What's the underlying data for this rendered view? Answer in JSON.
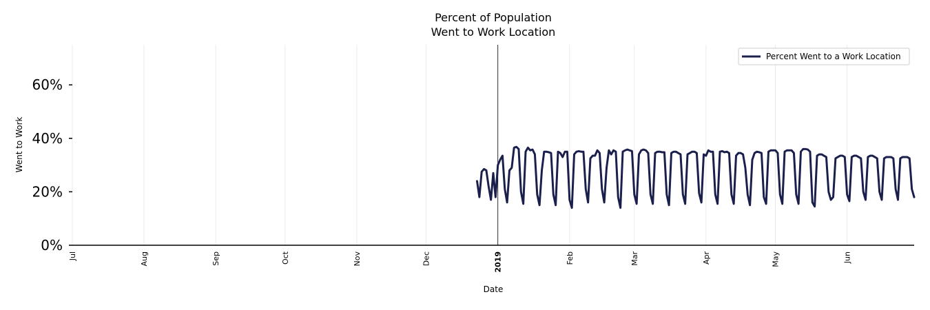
{
  "chart_data": {
    "type": "line",
    "title_line1": "Percent of Population",
    "title_line2": "Went to Work Location",
    "xlabel": "Date",
    "ylabel": "Went to Work",
    "ylim": [
      0,
      75
    ],
    "yticks": [
      0,
      20,
      40,
      60
    ],
    "ytick_labels": [
      "0%",
      "20%",
      "40%",
      "60%"
    ],
    "x_start": "2018-07-01",
    "x_end": "2019-06-30",
    "xticks": [
      {
        "date": "2018-07-01",
        "label": "Jul",
        "bold": false
      },
      {
        "date": "2018-08-01",
        "label": "Aug",
        "bold": false
      },
      {
        "date": "2018-09-01",
        "label": "Sep",
        "bold": false
      },
      {
        "date": "2018-10-01",
        "label": "Oct",
        "bold": false
      },
      {
        "date": "2018-11-01",
        "label": "Nov",
        "bold": false
      },
      {
        "date": "2018-12-01",
        "label": "Dec",
        "bold": false
      },
      {
        "date": "2019-01-01",
        "label": "2019",
        "bold": true
      },
      {
        "date": "2019-02-01",
        "label": "Feb",
        "bold": false
      },
      {
        "date": "2019-03-01",
        "label": "Mar",
        "bold": false
      },
      {
        "date": "2019-04-01",
        "label": "Apr",
        "bold": false
      },
      {
        "date": "2019-05-01",
        "label": "May",
        "bold": false
      },
      {
        "date": "2019-06-01",
        "label": "Jun",
        "bold": false
      }
    ],
    "vline_date": "2019-01-01",
    "legend": "Percent Went to a Work Location",
    "legend_loc": "top-right",
    "series": [
      {
        "name": "Percent Went to a Work Location",
        "color": "#1b1f4b",
        "start_date": "2018-12-23",
        "values": [
          24,
          18,
          27.5,
          28.5,
          28,
          22,
          17,
          27,
          18,
          30,
          32,
          33.5,
          21,
          16,
          28,
          29,
          36.5,
          36.8,
          36,
          20,
          15.5,
          35,
          36.5,
          35.5,
          35.8,
          34,
          19,
          15,
          28,
          35,
          35,
          34.8,
          34.5,
          19,
          15,
          35,
          34.5,
          33,
          35,
          35,
          17,
          14,
          34,
          35,
          35.2,
          35,
          35,
          21,
          16,
          32.5,
          33.5,
          33.5,
          35.5,
          34.5,
          21,
          16,
          29,
          35.5,
          34,
          35.5,
          35,
          18,
          14,
          35,
          35.5,
          35.8,
          35.5,
          35.2,
          19,
          15.5,
          34,
          35.5,
          35.8,
          35.5,
          34.5,
          19,
          15.5,
          34.5,
          35,
          35,
          34.8,
          34.8,
          19,
          15,
          34.5,
          35,
          35,
          34.5,
          34,
          19,
          15.5,
          34,
          34.5,
          35,
          35,
          34.5,
          19.5,
          16,
          34,
          33.5,
          35.5,
          35,
          35,
          19,
          15.5,
          35,
          35.2,
          34.8,
          35,
          34.5,
          19,
          15.5,
          33.5,
          34.5,
          34.5,
          34,
          29,
          19,
          15,
          32,
          34.5,
          35,
          34.8,
          34.5,
          18,
          15.5,
          35,
          35.5,
          35.5,
          35.5,
          34.5,
          19,
          15.5,
          35,
          35.5,
          35.5,
          35.5,
          34.5,
          19,
          15.5,
          35,
          36,
          36,
          35.8,
          35,
          16,
          14.5,
          33.5,
          34,
          34,
          33.5,
          33,
          20,
          17,
          18,
          32.5,
          33,
          33.5,
          33.5,
          33,
          19,
          16.5,
          33,
          33.5,
          33.5,
          33,
          32.5,
          20,
          17,
          33,
          33.5,
          33.5,
          33,
          32.5,
          20,
          17,
          32.5,
          33,
          33,
          33,
          32.5,
          21,
          17,
          32.5,
          33,
          33,
          33,
          32.5,
          21,
          18
        ]
      }
    ]
  }
}
